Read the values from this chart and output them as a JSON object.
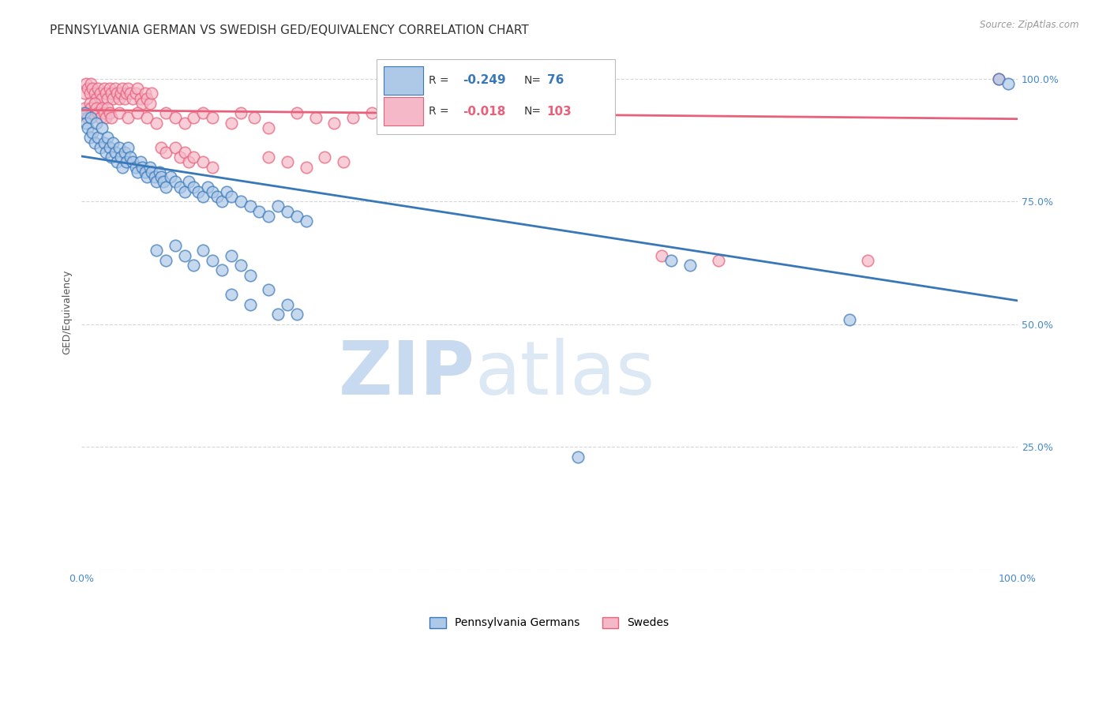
{
  "title": "PENNSYLVANIA GERMAN VS SWEDISH GED/EQUIVALENCY CORRELATION CHART",
  "source": "Source: ZipAtlas.com",
  "ylabel": "GED/Equivalency",
  "watermark_zip": "ZIP",
  "watermark_atlas": "atlas",
  "legend_blue_label": "Pennsylvania Germans",
  "legend_pink_label": "Swedes",
  "blue_color": "#aec8e8",
  "pink_color": "#f4b8c8",
  "blue_line_color": "#3878b8",
  "pink_line_color": "#e8607a",
  "blue_scatter": [
    [
      0.003,
      0.93
    ],
    [
      0.005,
      0.91
    ],
    [
      0.007,
      0.9
    ],
    [
      0.009,
      0.88
    ],
    [
      0.01,
      0.92
    ],
    [
      0.012,
      0.89
    ],
    [
      0.014,
      0.87
    ],
    [
      0.016,
      0.91
    ],
    [
      0.018,
      0.88
    ],
    [
      0.02,
      0.86
    ],
    [
      0.022,
      0.9
    ],
    [
      0.024,
      0.87
    ],
    [
      0.026,
      0.85
    ],
    [
      0.028,
      0.88
    ],
    [
      0.03,
      0.86
    ],
    [
      0.032,
      0.84
    ],
    [
      0.034,
      0.87
    ],
    [
      0.036,
      0.85
    ],
    [
      0.038,
      0.83
    ],
    [
      0.04,
      0.86
    ],
    [
      0.042,
      0.84
    ],
    [
      0.044,
      0.82
    ],
    [
      0.046,
      0.85
    ],
    [
      0.048,
      0.83
    ],
    [
      0.05,
      0.86
    ],
    [
      0.052,
      0.84
    ],
    [
      0.055,
      0.83
    ],
    [
      0.058,
      0.82
    ],
    [
      0.06,
      0.81
    ],
    [
      0.063,
      0.83
    ],
    [
      0.065,
      0.82
    ],
    [
      0.068,
      0.81
    ],
    [
      0.07,
      0.8
    ],
    [
      0.073,
      0.82
    ],
    [
      0.075,
      0.81
    ],
    [
      0.078,
      0.8
    ],
    [
      0.08,
      0.79
    ],
    [
      0.083,
      0.81
    ],
    [
      0.085,
      0.8
    ],
    [
      0.088,
      0.79
    ],
    [
      0.09,
      0.78
    ],
    [
      0.095,
      0.8
    ],
    [
      0.1,
      0.79
    ],
    [
      0.105,
      0.78
    ],
    [
      0.11,
      0.77
    ],
    [
      0.115,
      0.79
    ],
    [
      0.12,
      0.78
    ],
    [
      0.125,
      0.77
    ],
    [
      0.13,
      0.76
    ],
    [
      0.135,
      0.78
    ],
    [
      0.14,
      0.77
    ],
    [
      0.145,
      0.76
    ],
    [
      0.15,
      0.75
    ],
    [
      0.155,
      0.77
    ],
    [
      0.16,
      0.76
    ],
    [
      0.17,
      0.75
    ],
    [
      0.18,
      0.74
    ],
    [
      0.19,
      0.73
    ],
    [
      0.2,
      0.72
    ],
    [
      0.21,
      0.74
    ],
    [
      0.22,
      0.73
    ],
    [
      0.23,
      0.72
    ],
    [
      0.24,
      0.71
    ],
    [
      0.08,
      0.65
    ],
    [
      0.09,
      0.63
    ],
    [
      0.1,
      0.66
    ],
    [
      0.11,
      0.64
    ],
    [
      0.12,
      0.62
    ],
    [
      0.13,
      0.65
    ],
    [
      0.14,
      0.63
    ],
    [
      0.15,
      0.61
    ],
    [
      0.16,
      0.64
    ],
    [
      0.17,
      0.62
    ],
    [
      0.18,
      0.6
    ],
    [
      0.16,
      0.56
    ],
    [
      0.18,
      0.54
    ],
    [
      0.2,
      0.57
    ],
    [
      0.21,
      0.52
    ],
    [
      0.22,
      0.54
    ],
    [
      0.23,
      0.52
    ],
    [
      0.63,
      0.63
    ],
    [
      0.65,
      0.62
    ],
    [
      0.82,
      0.51
    ],
    [
      0.53,
      0.23
    ],
    [
      0.98,
      1.0
    ],
    [
      0.99,
      0.99
    ]
  ],
  "pink_scatter": [
    [
      0.003,
      0.97
    ],
    [
      0.005,
      0.99
    ],
    [
      0.007,
      0.98
    ],
    [
      0.009,
      0.97
    ],
    [
      0.01,
      0.99
    ],
    [
      0.012,
      0.98
    ],
    [
      0.014,
      0.97
    ],
    [
      0.016,
      0.96
    ],
    [
      0.018,
      0.98
    ],
    [
      0.02,
      0.97
    ],
    [
      0.022,
      0.96
    ],
    [
      0.024,
      0.98
    ],
    [
      0.026,
      0.97
    ],
    [
      0.028,
      0.96
    ],
    [
      0.03,
      0.98
    ],
    [
      0.032,
      0.97
    ],
    [
      0.034,
      0.96
    ],
    [
      0.036,
      0.98
    ],
    [
      0.038,
      0.97
    ],
    [
      0.04,
      0.96
    ],
    [
      0.042,
      0.97
    ],
    [
      0.044,
      0.98
    ],
    [
      0.046,
      0.96
    ],
    [
      0.048,
      0.97
    ],
    [
      0.05,
      0.98
    ],
    [
      0.052,
      0.97
    ],
    [
      0.055,
      0.96
    ],
    [
      0.058,
      0.97
    ],
    [
      0.06,
      0.98
    ],
    [
      0.063,
      0.96
    ],
    [
      0.065,
      0.95
    ],
    [
      0.068,
      0.97
    ],
    [
      0.07,
      0.96
    ],
    [
      0.073,
      0.95
    ],
    [
      0.075,
      0.97
    ],
    [
      0.003,
      0.94
    ],
    [
      0.005,
      0.93
    ],
    [
      0.007,
      0.92
    ],
    [
      0.009,
      0.95
    ],
    [
      0.01,
      0.94
    ],
    [
      0.012,
      0.93
    ],
    [
      0.014,
      0.95
    ],
    [
      0.016,
      0.94
    ],
    [
      0.018,
      0.93
    ],
    [
      0.02,
      0.92
    ],
    [
      0.022,
      0.94
    ],
    [
      0.024,
      0.93
    ],
    [
      0.026,
      0.92
    ],
    [
      0.028,
      0.94
    ],
    [
      0.03,
      0.93
    ],
    [
      0.032,
      0.92
    ],
    [
      0.04,
      0.93
    ],
    [
      0.05,
      0.92
    ],
    [
      0.06,
      0.93
    ],
    [
      0.07,
      0.92
    ],
    [
      0.08,
      0.91
    ],
    [
      0.09,
      0.93
    ],
    [
      0.1,
      0.92
    ],
    [
      0.11,
      0.91
    ],
    [
      0.12,
      0.92
    ],
    [
      0.13,
      0.93
    ],
    [
      0.14,
      0.92
    ],
    [
      0.16,
      0.91
    ],
    [
      0.17,
      0.93
    ],
    [
      0.185,
      0.92
    ],
    [
      0.2,
      0.9
    ],
    [
      0.23,
      0.93
    ],
    [
      0.25,
      0.92
    ],
    [
      0.27,
      0.91
    ],
    [
      0.29,
      0.92
    ],
    [
      0.31,
      0.93
    ],
    [
      0.33,
      0.91
    ],
    [
      0.35,
      0.92
    ],
    [
      0.37,
      0.91
    ],
    [
      0.39,
      0.93
    ],
    [
      0.085,
      0.86
    ],
    [
      0.09,
      0.85
    ],
    [
      0.1,
      0.86
    ],
    [
      0.105,
      0.84
    ],
    [
      0.11,
      0.85
    ],
    [
      0.115,
      0.83
    ],
    [
      0.12,
      0.84
    ],
    [
      0.13,
      0.83
    ],
    [
      0.14,
      0.82
    ],
    [
      0.2,
      0.84
    ],
    [
      0.22,
      0.83
    ],
    [
      0.24,
      0.82
    ],
    [
      0.26,
      0.84
    ],
    [
      0.28,
      0.83
    ],
    [
      0.62,
      0.64
    ],
    [
      0.68,
      0.63
    ],
    [
      0.84,
      0.63
    ],
    [
      0.98,
      1.0
    ]
  ],
  "xlim": [
    0.0,
    1.0
  ],
  "ylim": [
    0.0,
    1.05
  ],
  "yticks": [
    0.0,
    0.25,
    0.5,
    0.75,
    1.0
  ],
  "ytick_labels": [
    "",
    "25.0%",
    "50.0%",
    "75.0%",
    "100.0%"
  ],
  "blue_trend_y_start": 0.842,
  "blue_trend_y_end": 0.548,
  "pink_trend_y_start": 0.936,
  "pink_trend_y_end": 0.918,
  "background_color": "#ffffff",
  "grid_color": "#cccccc",
  "title_fontsize": 11,
  "axis_label_fontsize": 9,
  "tick_fontsize": 9,
  "watermark_color": "#c8daf0"
}
